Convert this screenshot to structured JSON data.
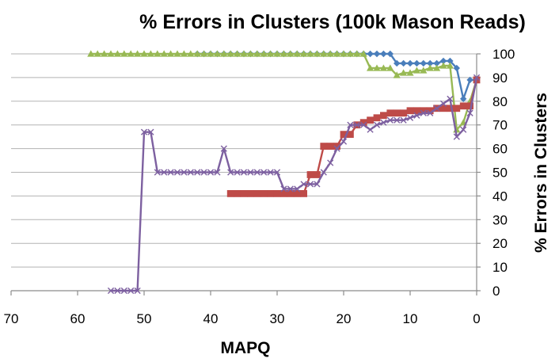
{
  "chart_data": {
    "type": "line",
    "title": "% Errors in Clusters (100k Mason Reads)",
    "xlabel": "MAPQ",
    "ylabel": "% Errors in Clusters",
    "xlim": [
      70,
      0
    ],
    "ylim": [
      0,
      100
    ],
    "x_ticks": [
      70,
      60,
      50,
      40,
      30,
      20,
      10,
      0
    ],
    "y_ticks": [
      0,
      10,
      20,
      30,
      40,
      50,
      60,
      70,
      80,
      90,
      100
    ],
    "x_reversed": true,
    "y_axis_side": "right",
    "grid": "horizontal",
    "legend": "none",
    "series": [
      {
        "color": "#4a7ebb",
        "marker": "diamond",
        "points": [
          [
            42,
            100
          ],
          [
            41,
            100
          ],
          [
            40,
            100
          ],
          [
            39,
            100
          ],
          [
            38,
            100
          ],
          [
            37,
            100
          ],
          [
            36,
            100
          ],
          [
            35,
            100
          ],
          [
            34,
            100
          ],
          [
            33,
            100
          ],
          [
            32,
            100
          ],
          [
            31,
            100
          ],
          [
            30,
            100
          ],
          [
            29,
            100
          ],
          [
            28,
            100
          ],
          [
            27,
            100
          ],
          [
            26,
            100
          ],
          [
            25,
            100
          ],
          [
            24,
            100
          ],
          [
            23,
            100
          ],
          [
            22,
            100
          ],
          [
            21,
            100
          ],
          [
            20,
            100
          ],
          [
            19,
            100
          ],
          [
            18,
            100
          ],
          [
            17,
            100
          ],
          [
            16,
            100
          ],
          [
            15,
            100
          ],
          [
            14,
            100
          ],
          [
            13,
            100
          ],
          [
            12,
            96
          ],
          [
            11,
            96
          ],
          [
            10,
            96
          ],
          [
            9,
            96
          ],
          [
            8,
            96
          ],
          [
            7,
            96
          ],
          [
            6,
            96
          ],
          [
            5,
            97
          ],
          [
            4,
            97
          ],
          [
            3,
            94
          ],
          [
            2,
            81
          ],
          [
            1,
            89
          ],
          [
            0,
            89
          ]
        ]
      },
      {
        "color": "#98b954",
        "marker": "triangle",
        "points": [
          [
            58,
            100
          ],
          [
            57,
            100
          ],
          [
            56,
            100
          ],
          [
            55,
            100
          ],
          [
            54,
            100
          ],
          [
            53,
            100
          ],
          [
            52,
            100
          ],
          [
            51,
            100
          ],
          [
            50,
            100
          ],
          [
            49,
            100
          ],
          [
            48,
            100
          ],
          [
            47,
            100
          ],
          [
            46,
            100
          ],
          [
            45,
            100
          ],
          [
            44,
            100
          ],
          [
            43,
            100
          ],
          [
            42,
            100
          ],
          [
            41,
            100
          ],
          [
            40,
            100
          ],
          [
            39,
            100
          ],
          [
            38,
            100
          ],
          [
            37,
            100
          ],
          [
            36,
            100
          ],
          [
            35,
            100
          ],
          [
            34,
            100
          ],
          [
            33,
            100
          ],
          [
            32,
            100
          ],
          [
            31,
            100
          ],
          [
            30,
            100
          ],
          [
            29,
            100
          ],
          [
            28,
            100
          ],
          [
            27,
            100
          ],
          [
            26,
            100
          ],
          [
            25,
            100
          ],
          [
            24,
            100
          ],
          [
            23,
            100
          ],
          [
            22,
            100
          ],
          [
            21,
            100
          ],
          [
            20,
            100
          ],
          [
            19,
            100
          ],
          [
            18,
            100
          ],
          [
            17,
            100
          ],
          [
            16,
            94
          ],
          [
            15,
            94
          ],
          [
            14,
            94
          ],
          [
            13,
            94
          ],
          [
            12,
            91
          ],
          [
            11,
            92
          ],
          [
            10,
            92
          ],
          [
            9,
            93
          ],
          [
            8,
            93
          ],
          [
            7,
            94
          ],
          [
            6,
            94
          ],
          [
            5,
            95
          ],
          [
            4,
            95
          ],
          [
            3,
            68
          ],
          [
            2,
            71
          ],
          [
            1,
            80
          ],
          [
            0,
            89
          ]
        ]
      },
      {
        "color": "#be4b48",
        "marker": "square",
        "points": [
          [
            37,
            41
          ],
          [
            36,
            41
          ],
          [
            35,
            41
          ],
          [
            34,
            41
          ],
          [
            33,
            41
          ],
          [
            32,
            41
          ],
          [
            31,
            41
          ],
          [
            30,
            41
          ],
          [
            29,
            41
          ],
          [
            28,
            41
          ],
          [
            27,
            41
          ],
          [
            26,
            41
          ],
          [
            25,
            49
          ],
          [
            24,
            49
          ],
          [
            23,
            61
          ],
          [
            22,
            61
          ],
          [
            21,
            61
          ],
          [
            20,
            66
          ],
          [
            19,
            66
          ],
          [
            18,
            70
          ],
          [
            17,
            71
          ],
          [
            16,
            72
          ],
          [
            15,
            73
          ],
          [
            14,
            74
          ],
          [
            13,
            75
          ],
          [
            12,
            75
          ],
          [
            11,
            75
          ],
          [
            10,
            76
          ],
          [
            9,
            76
          ],
          [
            8,
            76
          ],
          [
            7,
            76
          ],
          [
            6,
            77
          ],
          [
            5,
            77
          ],
          [
            4,
            77
          ],
          [
            3,
            77
          ],
          [
            2,
            78
          ],
          [
            1,
            78
          ],
          [
            0,
            89
          ]
        ]
      },
      {
        "color": "#7d60a0",
        "marker": "x",
        "points": [
          [
            55,
            0
          ],
          [
            54,
            0
          ],
          [
            53,
            0
          ],
          [
            52,
            0
          ],
          [
            51,
            0
          ],
          [
            50,
            67
          ],
          [
            49,
            67
          ],
          [
            48,
            50
          ],
          [
            47,
            50
          ],
          [
            46,
            50
          ],
          [
            45,
            50
          ],
          [
            44,
            50
          ],
          [
            43,
            50
          ],
          [
            42,
            50
          ],
          [
            41,
            50
          ],
          [
            40,
            50
          ],
          [
            39,
            50
          ],
          [
            38,
            60
          ],
          [
            37,
            50
          ],
          [
            36,
            50
          ],
          [
            35,
            50
          ],
          [
            34,
            50
          ],
          [
            33,
            50
          ],
          [
            32,
            50
          ],
          [
            31,
            50
          ],
          [
            30,
            50
          ],
          [
            29,
            43
          ],
          [
            28,
            43
          ],
          [
            27,
            43
          ],
          [
            26,
            45
          ],
          [
            25,
            45
          ],
          [
            24,
            45
          ],
          [
            23,
            50
          ],
          [
            22,
            54
          ],
          [
            21,
            60
          ],
          [
            20,
            63
          ],
          [
            19,
            70
          ],
          [
            18,
            70
          ],
          [
            17,
            70
          ],
          [
            16,
            68
          ],
          [
            15,
            70
          ],
          [
            14,
            71
          ],
          [
            13,
            72
          ],
          [
            12,
            72
          ],
          [
            11,
            72
          ],
          [
            10,
            73
          ],
          [
            9,
            74
          ],
          [
            8,
            75
          ],
          [
            7,
            75
          ],
          [
            6,
            77
          ],
          [
            5,
            79
          ],
          [
            4,
            81
          ],
          [
            3,
            65
          ],
          [
            2,
            68
          ],
          [
            1,
            75
          ],
          [
            0,
            90
          ]
        ]
      }
    ]
  }
}
